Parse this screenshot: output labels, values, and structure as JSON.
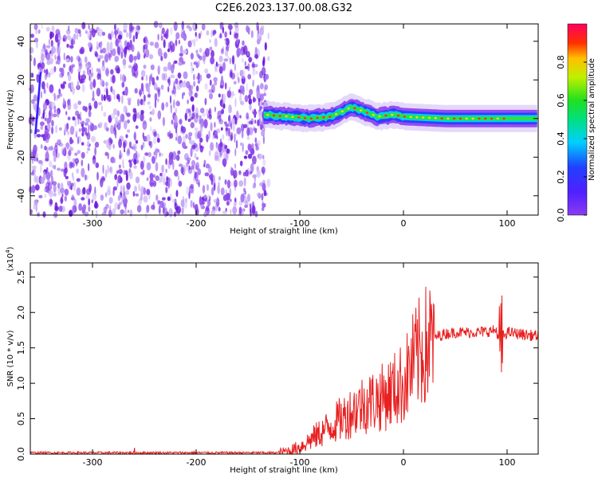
{
  "title": "C2E6.2023.137.00.08.G32",
  "colors": {
    "snr_line": "#e82020",
    "spectrogram_noise": "#7a2ae6",
    "frame": "#000000"
  },
  "chart_data": [
    {
      "type": "heatmap",
      "xlabel": "Height of straight line (km)",
      "ylabel": "Frequency (Hz)",
      "xlim": [
        -360,
        130
      ],
      "ylim": [
        -50,
        49
      ],
      "xticks": [
        "-300",
        "-200",
        "-100",
        "0",
        "100"
      ],
      "xtick_values": [
        -300,
        -200,
        -100,
        0,
        100
      ],
      "yticks": [
        "-40",
        "-20",
        "0",
        "20",
        "40"
      ],
      "ytick_values": [
        -40,
        -20,
        0,
        20,
        40
      ],
      "colorbar": {
        "label": "Normalized spectral amplitude",
        "range": [
          0,
          1
        ],
        "ticks": [
          "0.0",
          "0.2",
          "0.4",
          "0.6",
          "0.8"
        ],
        "tick_values": [
          0,
          0.2,
          0.4,
          0.6,
          0.8
        ],
        "colormap": "rainbow (violet-blue-cyan-green-yellow-red-magenta)"
      },
      "signal_band_center_hz": [
        {
          "x": -135,
          "f": 2
        },
        {
          "x": -110,
          "f": 1
        },
        {
          "x": -90,
          "f": 0
        },
        {
          "x": -70,
          "f": 1
        },
        {
          "x": -50,
          "f": 6
        },
        {
          "x": -40,
          "f": 4
        },
        {
          "x": -25,
          "f": 1
        },
        {
          "x": -10,
          "f": 2
        },
        {
          "x": 0,
          "f": 1
        },
        {
          "x": 40,
          "f": 0
        },
        {
          "x": 85,
          "f": 0
        },
        {
          "x": 130,
          "f": 0
        }
      ]
    },
    {
      "type": "line",
      "xlabel": "Height of straight line (km)",
      "ylabel": "SNR (10 * v/v)",
      "yscale_label": "(x10",
      "yscale_exponent": "4",
      "xlim": [
        -360,
        130
      ],
      "ylim": [
        0,
        2.7
      ],
      "xticks": [
        "-300",
        "-200",
        "-100",
        "0",
        "100"
      ],
      "xtick_values": [
        -300,
        -200,
        -100,
        0,
        100
      ],
      "yticks": [
        "0.0",
        "0.5",
        "1.0",
        "1.5",
        "2.0",
        "2.5"
      ],
      "ytick_values": [
        0,
        0.5,
        1.0,
        1.5,
        2.0,
        2.5
      ],
      "series": [
        {
          "x": [
            -360,
            -300,
            -200,
            -120,
            -110,
            -100,
            -90,
            -80,
            -70,
            -60,
            -50,
            -40,
            -30,
            -20,
            -10,
            0,
            10,
            20,
            30,
            40,
            50,
            60,
            70,
            80,
            90,
            92,
            95,
            100,
            110,
            120,
            130
          ],
          "y": [
            0.02,
            0.02,
            0.02,
            0.02,
            0.05,
            0.1,
            0.2,
            0.3,
            0.4,
            0.5,
            0.6,
            0.7,
            0.75,
            0.8,
            0.9,
            1.0,
            1.3,
            1.5,
            1.65,
            1.7,
            1.72,
            1.72,
            1.72,
            1.73,
            1.75,
            1.6,
            1.65,
            1.72,
            1.7,
            1.68,
            1.67
          ]
        }
      ]
    }
  ]
}
